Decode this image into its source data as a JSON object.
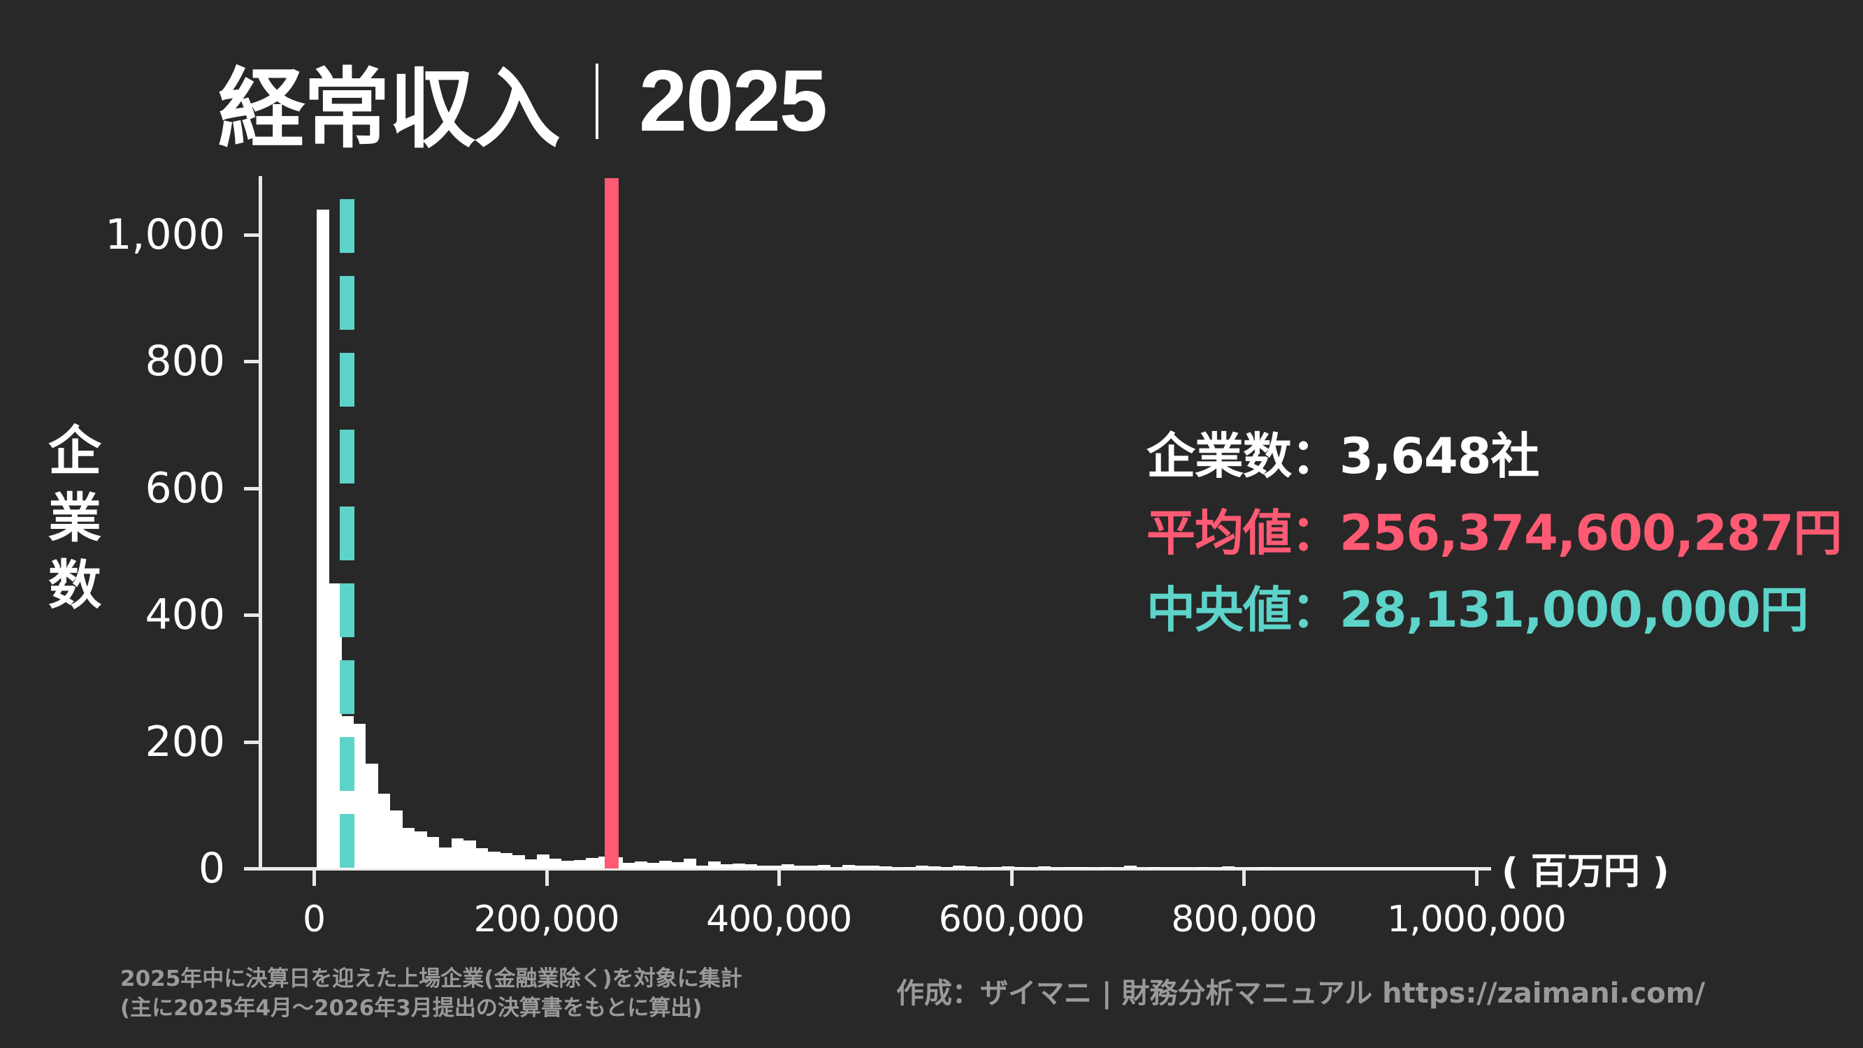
{
  "title": {
    "metric": "経常収入",
    "year": "2025"
  },
  "colors": {
    "background": "#282828",
    "bars": "#ffffff",
    "mean": "#ff5a73",
    "median": "#5dd3c9",
    "footer": "#9a9a9a"
  },
  "stats": {
    "count_label": "企業数",
    "count_value": "：3,648社",
    "mean_label": "平均値",
    "mean_value": "：256,374,600,287円",
    "median_label": "中央値",
    "median_value": "：28,131,000,000円"
  },
  "axes": {
    "ylabel": "企業数",
    "xunit": "( 百万円 )",
    "yticks": [
      "0",
      "200",
      "400",
      "600",
      "800",
      "1,000"
    ],
    "xticks": [
      "0",
      "200,000",
      "400,000",
      "600,000",
      "800,000",
      "1,000,000"
    ]
  },
  "footer": {
    "note_line1": "2025年中に決算日を迎えた上場企業(金融業除く)を対象に集計",
    "note_line2": "(主に2025年4月～2026年3月提出の決算書をもとに算出)",
    "credit": "作成：ザイマニ | 財務分析マニュアル https://zaimani.com/"
  },
  "chart_data": {
    "type": "bar",
    "subtype": "histogram",
    "title": "経常収入｜2025",
    "xlabel": "百万円",
    "ylabel": "企業数",
    "xlim": [
      -50000,
      1010000
    ],
    "ylim": [
      0,
      1080
    ],
    "xticks": [
      0,
      200000,
      400000,
      600000,
      800000,
      1000000
    ],
    "yticks": [
      0,
      200,
      400,
      600,
      800,
      1000
    ],
    "grid": false,
    "bin_start": 2500,
    "bin_width": 10520,
    "values": [
      1039,
      450,
      240,
      228,
      165,
      118,
      92,
      64,
      59,
      50,
      33,
      47,
      44,
      32,
      26,
      24,
      21,
      14,
      22,
      16,
      12,
      13,
      17,
      19,
      18,
      9,
      11,
      9,
      12,
      10,
      16,
      5,
      11,
      7,
      8,
      7,
      5,
      4,
      7,
      5,
      5,
      6,
      1,
      6,
      4,
      5,
      3,
      1,
      2,
      4,
      3,
      2,
      5,
      3,
      1,
      2,
      3,
      2,
      1,
      3,
      1,
      2,
      2,
      1,
      2,
      1,
      4,
      1,
      2,
      1,
      1,
      1,
      2,
      1,
      3,
      1,
      1,
      2,
      1,
      1,
      1,
      1,
      1,
      1,
      1,
      1,
      1,
      1,
      1,
      1,
      1,
      1,
      1,
      1,
      1
    ],
    "reference_lines": [
      {
        "name": "平均値",
        "x": 256375,
        "color": "#ff5a73",
        "style": "solid"
      },
      {
        "name": "中央値",
        "x": 28131,
        "color": "#5dd3c9",
        "style": "dashed"
      }
    ],
    "annotations": [
      "企業数：3,648社",
      "平均値：256,374,600,287円",
      "中央値：28,131,000,000円"
    ]
  }
}
